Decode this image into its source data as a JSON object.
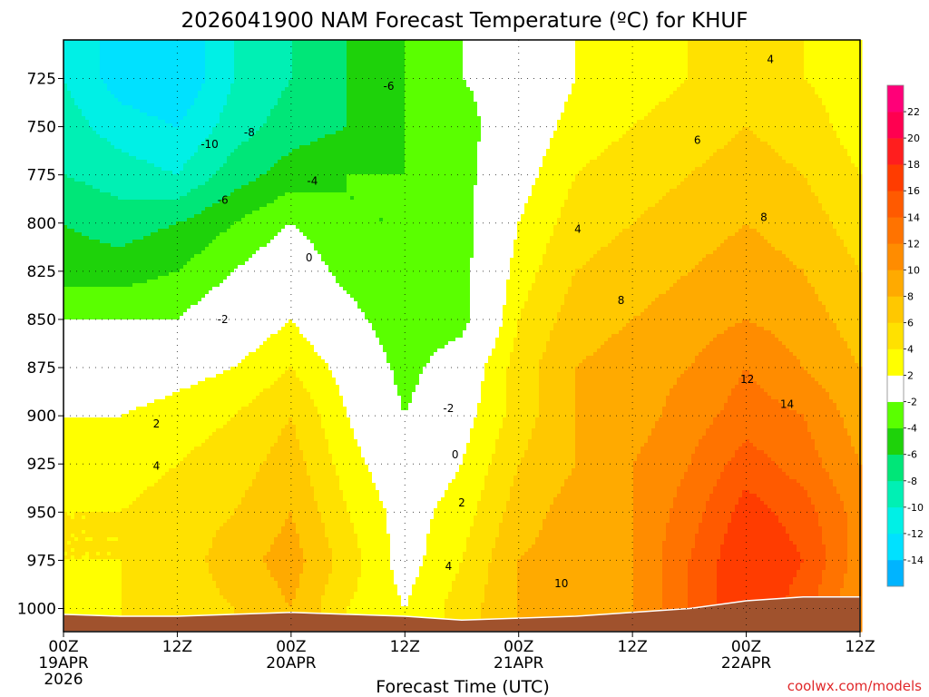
{
  "chart_data": {
    "type": "heatmap",
    "title": "2026041900 NAM Forecast Temperature (ºC) for KHUF",
    "xlabel": "Forecast Time (UTC)",
    "ylabel": "",
    "credit": "coolwx.com/models",
    "x_ticks": [
      {
        "hours": 0,
        "label": "00Z",
        "sub": "19APR",
        "sub2": "2026"
      },
      {
        "hours": 12,
        "label": "12Z",
        "sub": "",
        "sub2": ""
      },
      {
        "hours": 24,
        "label": "00Z",
        "sub": "20APR",
        "sub2": ""
      },
      {
        "hours": 36,
        "label": "12Z",
        "sub": "",
        "sub2": ""
      },
      {
        "hours": 48,
        "label": "00Z",
        "sub": "21APR",
        "sub2": ""
      },
      {
        "hours": 60,
        "label": "12Z",
        "sub": "",
        "sub2": ""
      },
      {
        "hours": 72,
        "label": "00Z",
        "sub": "22APR",
        "sub2": ""
      },
      {
        "hours": 84,
        "label": "12Z",
        "sub": "",
        "sub2": ""
      }
    ],
    "xlim": [
      0,
      84
    ],
    "y_ticks": [
      725,
      750,
      775,
      800,
      825,
      850,
      875,
      900,
      925,
      950,
      975,
      1000
    ],
    "ylim": [
      1012,
      705
    ],
    "x": [
      0,
      6,
      12,
      18,
      24,
      30,
      36,
      42,
      48,
      54,
      60,
      66,
      72,
      78,
      84
    ],
    "levels": [
      1000,
      975,
      950,
      925,
      900,
      875,
      850,
      825,
      800,
      775,
      750,
      725,
      710
    ],
    "values": [
      [
        3,
        4,
        5,
        6,
        8,
        4,
        2,
        5,
        8,
        9,
        10,
        14,
        18,
        15,
        10
      ],
      [
        4,
        4,
        5,
        7,
        9,
        5,
        1,
        4,
        8,
        9,
        10,
        14,
        18,
        16,
        11
      ],
      [
        4,
        4,
        5,
        6,
        8,
        4,
        1,
        3,
        7,
        9,
        10,
        13,
        17,
        15,
        11
      ],
      [
        3,
        3,
        4,
        5,
        7,
        3,
        0,
        2,
        6,
        8,
        10,
        12,
        15,
        13,
        10
      ],
      [
        2,
        2,
        3,
        4,
        6,
        2,
        -2,
        1,
        5,
        8,
        9,
        11,
        13,
        12,
        9
      ],
      [
        0,
        0,
        1,
        2,
        4,
        1,
        -3,
        0,
        5,
        8,
        9,
        10,
        12,
        10,
        8
      ],
      [
        -2,
        -2,
        -2,
        0,
        2,
        -1,
        -4,
        -3,
        4,
        7,
        8,
        9,
        10,
        9,
        7
      ],
      [
        -5,
        -5,
        -4,
        -2,
        0,
        -3,
        -4,
        -3,
        3,
        6,
        7,
        8,
        9,
        8,
        6
      ],
      [
        -6,
        -7,
        -6,
        -4,
        -2,
        -4,
        -4,
        -3,
        2,
        5,
        6,
        7,
        8,
        7,
        5
      ],
      [
        -8,
        -9,
        -10,
        -7,
        -5,
        -4,
        -4,
        -3,
        1,
        4,
        5,
        6,
        7,
        6,
        4
      ],
      [
        -9,
        -11,
        -12,
        -9,
        -7,
        -6,
        -4,
        -3,
        0,
        3,
        4,
        5,
        6,
        5,
        3
      ],
      [
        -10,
        -13,
        -14,
        -10,
        -8,
        -6,
        -4,
        -2,
        -1,
        2,
        3,
        4,
        5,
        4,
        3
      ],
      [
        -10,
        -13,
        -14,
        -10,
        -8,
        -6,
        -4,
        -2,
        -1,
        2,
        3,
        4,
        4,
        4,
        3
      ]
    ],
    "contour_labels": [
      {
        "value": "-10",
        "x": 8.8,
        "y": 761
      },
      {
        "value": "-8",
        "x": 11.2,
        "y": 755
      },
      {
        "value": "-6",
        "x": 19.6,
        "y": 731
      },
      {
        "value": "-4",
        "x": 15.0,
        "y": 780
      },
      {
        "value": "-6",
        "x": 9.6,
        "y": 790
      },
      {
        "value": "-2",
        "x": 9.6,
        "y": 852
      },
      {
        "value": "0",
        "x": 14.8,
        "y": 820
      },
      {
        "value": "2",
        "x": 5.6,
        "y": 906
      },
      {
        "value": "4",
        "x": 5.6,
        "y": 928
      },
      {
        "value": "-2",
        "x": 23.2,
        "y": 898
      },
      {
        "value": "0",
        "x": 23.6,
        "y": 922
      },
      {
        "value": "2",
        "x": 24.0,
        "y": 947
      },
      {
        "value": "4",
        "x": 23.2,
        "y": 980
      },
      {
        "value": "10",
        "x": 30.0,
        "y": 989
      },
      {
        "value": "4",
        "x": 31.0,
        "y": 805
      },
      {
        "value": "8",
        "x": 33.6,
        "y": 842
      },
      {
        "value": "6",
        "x": 38.2,
        "y": 759
      },
      {
        "value": "8",
        "x": 42.2,
        "y": 799
      },
      {
        "value": "12",
        "x": 41.2,
        "y": 883
      },
      {
        "value": "14",
        "x": 43.6,
        "y": 896
      },
      {
        "value": "4",
        "x": 42.6,
        "y": 717
      }
    ],
    "colorbar": {
      "bounds": [
        -16,
        -14,
        -12,
        -10,
        -8,
        -6,
        -4,
        -2,
        2,
        4,
        6,
        8,
        10,
        12,
        14,
        16,
        18,
        20,
        22,
        24
      ],
      "labels": [
        "-14",
        "-12",
        "-10",
        "-8",
        "-6",
        "-4",
        "-2",
        "2",
        "4",
        "6",
        "8",
        "10",
        "12",
        "14",
        "16",
        "18",
        "20",
        "22"
      ],
      "colors": [
        "#00b4ff",
        "#00e1ff",
        "#00f0e6",
        "#00f0b4",
        "#00e678",
        "#1ed20a",
        "#5aff00",
        "#ffffff",
        "#ffff00",
        "#ffe100",
        "#ffc800",
        "#ffaa00",
        "#ff8c00",
        "#ff7300",
        "#ff5a00",
        "#ff3c00",
        "#ff1e1e",
        "#ff0050",
        "#ff0078"
      ]
    },
    "ground_color": "#a0522d",
    "surface_pressure": [
      1003,
      1004,
      1004,
      1003,
      1002,
      1003,
      1004,
      1006,
      1005,
      1004,
      1002,
      1000,
      996,
      994,
      994
    ],
    "grid": true
  }
}
